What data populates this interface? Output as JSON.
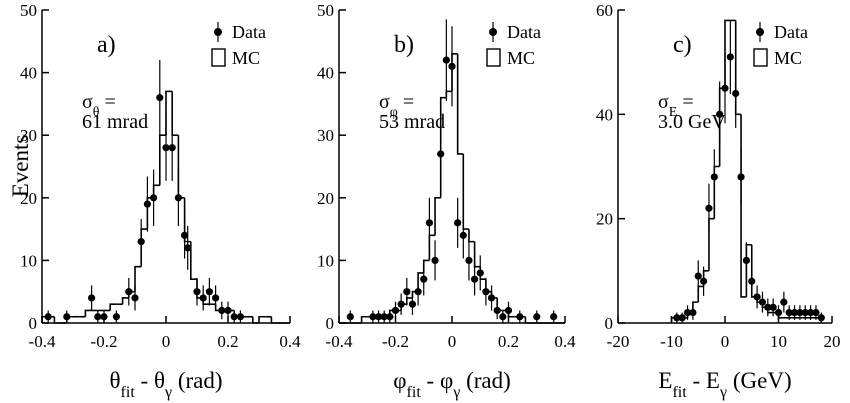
{
  "chart_data": [
    {
      "type": "histogram",
      "panel_label": "a)",
      "ylabel": "Events",
      "xlabel": [
        "θ",
        "fit",
        " - θ",
        "γ",
        " (rad)"
      ],
      "annotation": [
        [
          "σ",
          "θ",
          " ="
        ],
        "61 mrad"
      ],
      "xlim": [
        -0.4,
        0.4
      ],
      "xticks": [
        -0.4,
        -0.2,
        0,
        0.2,
        0.4
      ],
      "ylim": [
        0,
        50
      ],
      "yticks": [
        0,
        10,
        20,
        30,
        40,
        50
      ],
      "series": [
        {
          "name": "Data",
          "type": "scatter",
          "color": "#000",
          "x": [
            -0.38,
            -0.32,
            -0.24,
            -0.22,
            -0.2,
            -0.16,
            -0.12,
            -0.1,
            -0.08,
            -0.06,
            -0.04,
            -0.02,
            0,
            0.02,
            0.04,
            0.06,
            0.07,
            0.1,
            0.12,
            0.14,
            0.16,
            0.18,
            0.2,
            0.22,
            0.24
          ],
          "values": [
            1,
            1,
            4,
            1,
            1,
            1,
            5,
            4,
            13,
            19,
            20,
            36,
            28,
            28,
            20,
            14,
            12,
            5,
            4,
            5,
            4,
            2,
            2,
            1,
            1
          ],
          "errors": [
            1,
            1,
            2,
            1,
            1,
            1,
            2.2,
            2,
            3.6,
            4.4,
            4.5,
            6,
            5.3,
            5.3,
            4.5,
            3.7,
            3.5,
            2.2,
            2,
            2.2,
            2,
            1.4,
            1.4,
            1,
            1
          ]
        },
        {
          "name": "MC",
          "type": "histogram",
          "color": "#000",
          "bins": [
            -0.4,
            -0.38,
            -0.36,
            -0.34,
            -0.32,
            -0.3,
            -0.28,
            -0.26,
            -0.24,
            -0.22,
            -0.2,
            -0.18,
            -0.16,
            -0.14,
            -0.12,
            -0.1,
            -0.08,
            -0.06,
            -0.04,
            -0.02,
            0,
            0.02,
            0.04,
            0.06,
            0.08,
            0.1,
            0.12,
            0.14,
            0.16,
            0.18,
            0.2,
            0.22,
            0.24,
            0.26,
            0.28,
            0.3,
            0.32,
            0.34,
            0.36,
            0.38,
            0.4
          ],
          "values": [
            1,
            1,
            0,
            0,
            1,
            1,
            1,
            2,
            2,
            2,
            2,
            3,
            3,
            4,
            5,
            9,
            15,
            20,
            22,
            30,
            37,
            30,
            20,
            13,
            7,
            4,
            3,
            3,
            2,
            2,
            2,
            1,
            1,
            1,
            0,
            1,
            1,
            0,
            0,
            0
          ]
        }
      ]
    },
    {
      "type": "histogram",
      "panel_label": "b)",
      "xlabel": [
        "φ",
        "fit",
        " - φ",
        "γ",
        " (rad)"
      ],
      "annotation": [
        [
          "σ",
          "φ",
          " ="
        ],
        "53 mrad"
      ],
      "xlim": [
        -0.4,
        0.4
      ],
      "xticks": [
        -0.4,
        -0.2,
        0,
        0.2,
        0.4
      ],
      "ylim": [
        0,
        50
      ],
      "yticks": [
        0,
        10,
        20,
        30,
        40,
        50
      ],
      "series": [
        {
          "name": "Data",
          "type": "scatter",
          "color": "#000",
          "x": [
            -0.36,
            -0.28,
            -0.26,
            -0.24,
            -0.22,
            -0.2,
            -0.18,
            -0.16,
            -0.14,
            -0.12,
            -0.1,
            -0.08,
            -0.06,
            -0.04,
            -0.02,
            0,
            0.02,
            0.04,
            0.06,
            0.08,
            0.1,
            0.12,
            0.14,
            0.16,
            0.18,
            0.2,
            0.24,
            0.3,
            0.36
          ],
          "values": [
            1,
            1,
            1,
            1,
            1,
            2,
            3,
            5,
            3,
            5,
            7,
            16,
            10,
            27,
            42,
            41,
            16,
            14,
            10,
            7,
            8,
            5,
            4,
            2,
            1,
            2,
            1,
            1,
            1
          ],
          "errors": [
            1,
            1,
            1,
            1,
            1,
            1.4,
            1.7,
            2.2,
            1.7,
            2.2,
            2.6,
            4,
            3.2,
            5.2,
            6.5,
            6.4,
            4,
            3.7,
            3.2,
            2.6,
            2.8,
            2.2,
            2,
            1.4,
            1,
            1.4,
            1,
            1,
            1
          ]
        },
        {
          "name": "MC",
          "type": "histogram",
          "color": "#000",
          "bins": [
            -0.4,
            -0.38,
            -0.36,
            -0.34,
            -0.32,
            -0.3,
            -0.28,
            -0.26,
            -0.24,
            -0.22,
            -0.2,
            -0.18,
            -0.16,
            -0.14,
            -0.12,
            -0.1,
            -0.08,
            -0.06,
            -0.04,
            -0.02,
            0,
            0.02,
            0.04,
            0.06,
            0.08,
            0.1,
            0.12,
            0.14,
            0.16,
            0.18,
            0.2,
            0.22,
            0.24,
            0.26,
            0.28,
            0.3,
            0.32,
            0.34,
            0.36,
            0.38,
            0.4
          ],
          "values": [
            0,
            0,
            0,
            0,
            1,
            1,
            1,
            1,
            1,
            2,
            2,
            3,
            4,
            5,
            8,
            10,
            14,
            20,
            36,
            37,
            43,
            27,
            15,
            13,
            9,
            7,
            5,
            4,
            2,
            2,
            1,
            1,
            1,
            0,
            0,
            0,
            0,
            0,
            0,
            0
          ]
        }
      ]
    },
    {
      "type": "histogram",
      "panel_label": "c)",
      "xlabel": [
        "E",
        "fit",
        " - E",
        "γ",
        " (GeV)"
      ],
      "annotation": [
        [
          "σ",
          "E",
          " ="
        ],
        "3.0 GeV"
      ],
      "xlim": [
        -20,
        20
      ],
      "xticks": [
        -20,
        -10,
        0,
        10,
        20
      ],
      "ylim": [
        0,
        60
      ],
      "yticks": [
        0,
        20,
        40,
        60
      ],
      "series": [
        {
          "name": "Data",
          "type": "scatter",
          "color": "#000",
          "x": [
            -9,
            -8,
            -7,
            -6,
            -5,
            -4,
            -3,
            -2,
            -1,
            0,
            1,
            2,
            3,
            4,
            5,
            6,
            7,
            8,
            9,
            10,
            11,
            12,
            13,
            14,
            15,
            16,
            17,
            18
          ],
          "values": [
            1,
            1,
            2,
            2,
            9,
            8,
            22,
            28,
            40,
            45,
            51,
            44,
            28,
            12,
            8,
            5,
            4,
            3,
            3,
            2,
            4,
            2,
            2,
            2,
            2,
            2,
            2,
            1
          ],
          "errors": [
            1,
            1,
            1.4,
            1.4,
            3,
            2.8,
            4.7,
            5.3,
            6.3,
            6.7,
            7.1,
            6.6,
            5.3,
            3.5,
            2.8,
            2.2,
            2,
            1.7,
            1.7,
            1.4,
            2,
            1.4,
            1.4,
            1.4,
            1.4,
            1.4,
            1.4,
            1
          ]
        },
        {
          "name": "MC",
          "type": "histogram",
          "color": "#000",
          "bins": [
            -10,
            -9,
            -8,
            -7,
            -6,
            -5,
            -4,
            -3,
            -2,
            -1,
            0,
            1,
            2,
            3,
            4,
            5,
            6,
            7,
            8,
            9,
            10,
            11,
            12,
            13,
            14,
            15,
            16,
            17,
            18
          ],
          "values": [
            1,
            1,
            1,
            2,
            4,
            7,
            10,
            20,
            30,
            45,
            58,
            58,
            40,
            5,
            15,
            5,
            4,
            3,
            2,
            2,
            1,
            1,
            1,
            1,
            1,
            1,
            1,
            1
          ]
        }
      ]
    }
  ]
}
